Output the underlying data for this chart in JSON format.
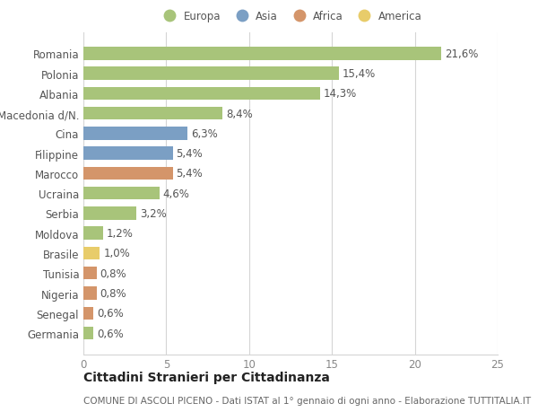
{
  "countries": [
    "Romania",
    "Polonia",
    "Albania",
    "Macedonia d/N.",
    "Cina",
    "Filippine",
    "Marocco",
    "Ucraina",
    "Serbia",
    "Moldova",
    "Brasile",
    "Tunisia",
    "Nigeria",
    "Senegal",
    "Germania"
  ],
  "values": [
    21.6,
    15.4,
    14.3,
    8.4,
    6.3,
    5.4,
    5.4,
    4.6,
    3.2,
    1.2,
    1.0,
    0.8,
    0.8,
    0.6,
    0.6
  ],
  "labels": [
    "21,6%",
    "15,4%",
    "14,3%",
    "8,4%",
    "6,3%",
    "5,4%",
    "5,4%",
    "4,6%",
    "3,2%",
    "1,2%",
    "1,0%",
    "0,8%",
    "0,8%",
    "0,6%",
    "0,6%"
  ],
  "continent": [
    "Europa",
    "Europa",
    "Europa",
    "Europa",
    "Asia",
    "Asia",
    "Africa",
    "Europa",
    "Europa",
    "Europa",
    "America",
    "Africa",
    "Africa",
    "Africa",
    "Europa"
  ],
  "colors": {
    "Europa": "#a8c47a",
    "Asia": "#7b9fc4",
    "Africa": "#d4956a",
    "America": "#e8cc6a"
  },
  "xlim": [
    0,
    25
  ],
  "xticks": [
    0,
    5,
    10,
    15,
    20,
    25
  ],
  "title": "Cittadini Stranieri per Cittadinanza",
  "subtitle": "COMUNE DI ASCOLI PICENO - Dati ISTAT al 1° gennaio di ogni anno - Elaborazione TUTTITALIA.IT",
  "background_color": "#ffffff",
  "grid_color": "#d5d5d5",
  "bar_height": 0.65,
  "text_fontsize": 8.5,
  "label_fontsize": 8.5,
  "title_fontsize": 10,
  "subtitle_fontsize": 7.5,
  "legend_order": [
    "Europa",
    "Asia",
    "Africa",
    "America"
  ]
}
